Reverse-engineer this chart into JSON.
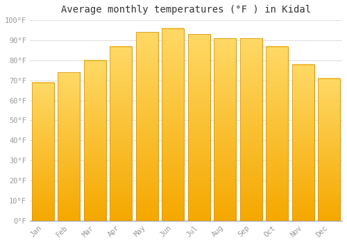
{
  "title": "Average monthly temperatures (°F ) in Kidal",
  "months": [
    "Jan",
    "Feb",
    "Mar",
    "Apr",
    "May",
    "Jun",
    "Jul",
    "Aug",
    "Sep",
    "Oct",
    "Nov",
    "Dec"
  ],
  "values": [
    69,
    74,
    80,
    87,
    94,
    96,
    93,
    91,
    91,
    87,
    78,
    71
  ],
  "bar_color_bottom": "#F5A800",
  "bar_color_top": "#FFD966",
  "bar_edge_color": "#D4900A",
  "background_color": "#FFFFFF",
  "ylim": [
    0,
    100
  ],
  "yticks": [
    0,
    10,
    20,
    30,
    40,
    50,
    60,
    70,
    80,
    90,
    100
  ],
  "ytick_labels": [
    "0°F",
    "10°F",
    "20°F",
    "30°F",
    "40°F",
    "50°F",
    "60°F",
    "70°F",
    "80°F",
    "90°F",
    "100°F"
  ],
  "title_fontsize": 10,
  "tick_fontsize": 7.5,
  "grid_color": "#E0E0E0",
  "tick_color": "#999999"
}
